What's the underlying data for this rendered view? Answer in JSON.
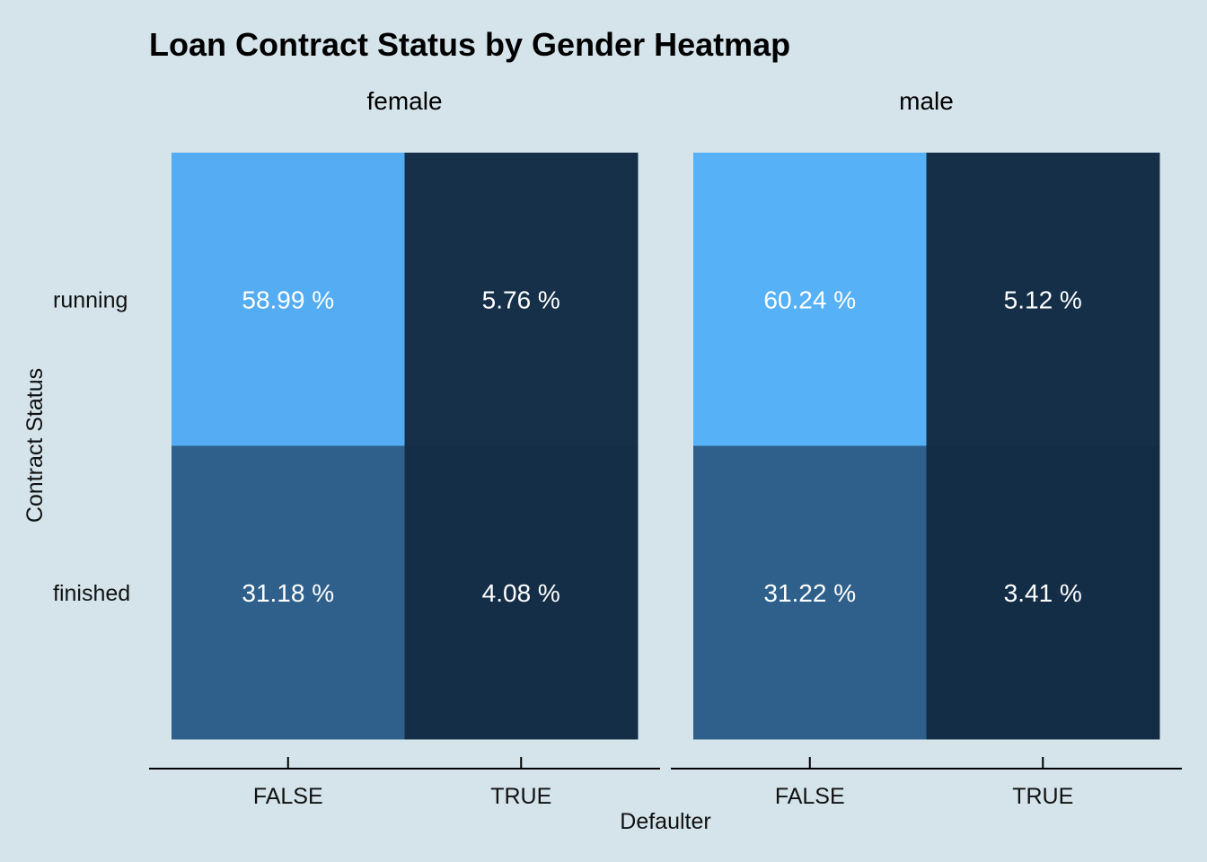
{
  "chart_data": {
    "type": "heatmap",
    "title": "Loan Contract Status by Gender Heatmap",
    "xlabel": "Defaulter",
    "ylabel": "Contract Status",
    "facets": [
      "female",
      "male"
    ],
    "x_categories": [
      "FALSE",
      "TRUE"
    ],
    "y_categories": [
      "running",
      "finished"
    ],
    "values": {
      "female": [
        [
          58.99,
          5.76
        ],
        [
          31.18,
          4.08
        ]
      ],
      "male": [
        [
          60.24,
          5.12
        ],
        [
          31.22,
          3.41
        ]
      ]
    },
    "labels": {
      "female": [
        [
          "58.99 %",
          "5.76 %"
        ],
        [
          "31.18 %",
          "4.08 %"
        ]
      ],
      "male": [
        [
          "60.24 %",
          "5.12 %"
        ],
        [
          "31.22 %",
          "3.41 %"
        ]
      ]
    },
    "color_scale": {
      "low": "#132b43",
      "high": "#56b1f7",
      "domain": [
        0,
        60.24
      ]
    },
    "grid": false,
    "legend": "none"
  }
}
